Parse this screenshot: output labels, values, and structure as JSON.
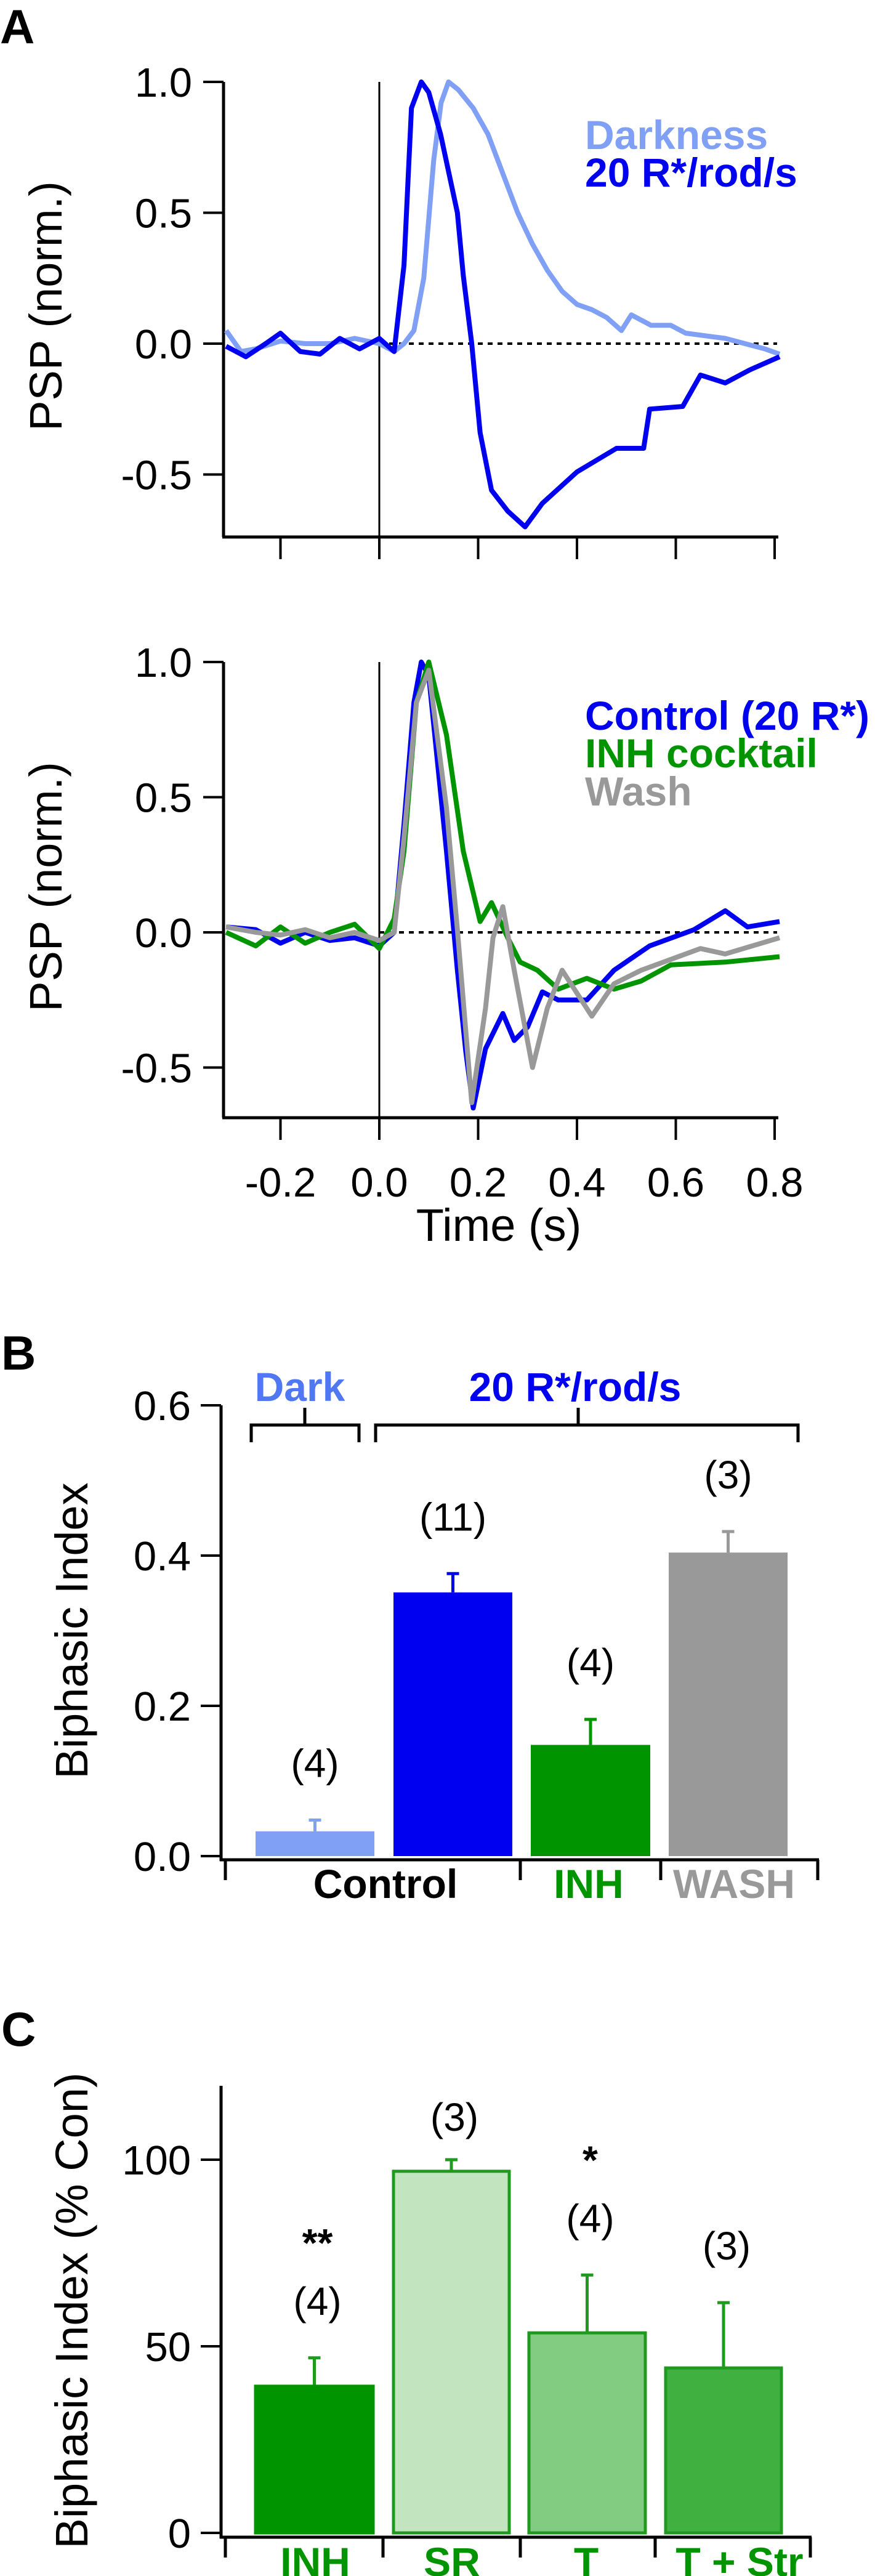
{
  "panel_labels": {
    "a": "A",
    "b": "B",
    "c": "C"
  },
  "colors": {
    "darkness": "#80a0f6",
    "control": "#0000f0",
    "inh": "#009400",
    "wash": "#999999",
    "dark_label": "#4f78f2",
    "sr": "#c2e5c0",
    "t": "#82cc82",
    "t_str": "#40b040",
    "c_outline": "#1f9a1f"
  },
  "chart_data": [
    {
      "type": "line",
      "ylabel": "PSP (norm.)",
      "xlim": [
        -0.3,
        0.8
      ],
      "ylim": [
        -0.7,
        1.0
      ],
      "yticks": [
        "1.0",
        "0.5",
        "0.0",
        "-0.5"
      ],
      "zero_line": "dotted",
      "series": [
        {
          "name": "Darkness",
          "color": "#80a0f6",
          "x": [
            -0.31,
            -0.28,
            -0.25,
            -0.2,
            -0.15,
            -0.1,
            -0.05,
            0.0,
            0.03,
            0.05,
            0.07,
            0.09,
            0.11,
            0.125,
            0.14,
            0.16,
            0.19,
            0.22,
            0.25,
            0.28,
            0.31,
            0.34,
            0.37,
            0.4,
            0.43,
            0.46,
            0.49,
            0.51,
            0.55,
            0.59,
            0.62,
            0.66,
            0.7,
            0.74,
            0.78,
            0.81
          ],
          "y": [
            0.05,
            -0.03,
            -0.02,
            0.01,
            0.0,
            0.0,
            0.02,
            0.0,
            -0.03,
            0.0,
            0.05,
            0.25,
            0.7,
            0.92,
            1.0,
            0.97,
            0.9,
            0.8,
            0.65,
            0.5,
            0.38,
            0.28,
            0.2,
            0.15,
            0.13,
            0.1,
            0.05,
            0.11,
            0.07,
            0.07,
            0.04,
            0.03,
            0.02,
            0.0,
            -0.02,
            -0.04
          ]
        },
        {
          "name": "20 R*/rod/s",
          "color": "#0000f0",
          "x": [
            -0.31,
            -0.27,
            -0.23,
            -0.2,
            -0.16,
            -0.12,
            -0.08,
            -0.04,
            0.0,
            0.03,
            0.05,
            0.065,
            0.085,
            0.1,
            0.124,
            0.158,
            0.17,
            0.187,
            0.204,
            0.227,
            0.26,
            0.295,
            0.33,
            0.4,
            0.48,
            0.535,
            0.547,
            0.614,
            0.65,
            0.7,
            0.75,
            0.81
          ],
          "y": [
            -0.01,
            -0.05,
            0.0,
            0.04,
            -0.03,
            -0.04,
            0.02,
            -0.02,
            0.02,
            -0.03,
            0.3,
            0.9,
            1.0,
            0.96,
            0.8,
            0.5,
            0.26,
            0.0,
            -0.34,
            -0.56,
            -0.64,
            -0.7,
            -0.61,
            -0.49,
            -0.4,
            -0.4,
            -0.25,
            -0.24,
            -0.12,
            -0.15,
            -0.1,
            -0.05
          ]
        }
      ]
    },
    {
      "type": "line",
      "xlabel": "Time (s)",
      "ylabel": "PSP (norm.)",
      "xlim": [
        -0.3,
        0.8
      ],
      "ylim": [
        -0.65,
        1.0
      ],
      "xticks": [
        "-0.2",
        "0.0",
        "0.2",
        "0.4",
        "0.6",
        "0.8"
      ],
      "yticks": [
        "1.0",
        "0.5",
        "0.0",
        "-0.5"
      ],
      "zero_line": "dotted",
      "series": [
        {
          "name": "Control (20 R*)",
          "color": "#0000f0",
          "x": [
            -0.31,
            -0.25,
            -0.2,
            -0.15,
            -0.1,
            -0.05,
            0.0,
            0.03,
            0.05,
            0.07,
            0.085,
            0.1,
            0.136,
            0.158,
            0.175,
            0.19,
            0.215,
            0.25,
            0.273,
            0.3,
            0.33,
            0.362,
            0.42,
            0.475,
            0.547,
            0.637,
            0.7,
            0.745,
            0.81
          ],
          "y": [
            0.02,
            0.01,
            -0.04,
            0.0,
            -0.03,
            -0.02,
            -0.05,
            0.0,
            0.4,
            0.85,
            1.0,
            0.95,
            0.3,
            -0.14,
            -0.44,
            -0.65,
            -0.43,
            -0.3,
            -0.4,
            -0.35,
            -0.22,
            -0.25,
            -0.25,
            -0.14,
            -0.05,
            0.01,
            0.08,
            0.02,
            0.04
          ]
        },
        {
          "name": "INH cocktail",
          "color": "#009400",
          "x": [
            -0.31,
            -0.25,
            -0.2,
            -0.15,
            -0.1,
            -0.05,
            0.0,
            0.03,
            0.05,
            0.075,
            0.1,
            0.136,
            0.17,
            0.204,
            0.227,
            0.26,
            0.285,
            0.32,
            0.362,
            0.42,
            0.475,
            0.53,
            0.59,
            0.7,
            0.81
          ],
          "y": [
            0.0,
            -0.05,
            0.02,
            -0.04,
            0.0,
            0.03,
            -0.06,
            0.05,
            0.3,
            0.85,
            1.0,
            0.73,
            0.3,
            0.04,
            0.11,
            -0.02,
            -0.11,
            -0.14,
            -0.21,
            -0.17,
            -0.21,
            -0.18,
            -0.12,
            -0.11,
            -0.09
          ]
        },
        {
          "name": "Wash",
          "color": "#999999",
          "x": [
            -0.31,
            -0.25,
            -0.2,
            -0.15,
            -0.1,
            -0.05,
            0.0,
            0.03,
            0.05,
            0.075,
            0.1,
            0.136,
            0.158,
            0.187,
            0.215,
            0.23,
            0.25,
            0.273,
            0.31,
            0.34,
            0.37,
            0.43,
            0.475,
            0.53,
            0.65,
            0.7,
            0.81
          ],
          "y": [
            0.02,
            0.0,
            -0.01,
            0.01,
            -0.02,
            0.0,
            -0.03,
            0.0,
            0.35,
            0.85,
            0.97,
            0.46,
            0.01,
            -0.63,
            -0.28,
            -0.02,
            0.095,
            -0.14,
            -0.5,
            -0.28,
            -0.14,
            -0.31,
            -0.19,
            -0.14,
            -0.06,
            -0.08,
            -0.02
          ]
        }
      ]
    },
    {
      "type": "bar",
      "ylabel": "Biphasic Index",
      "ylim": [
        0,
        0.6
      ],
      "yticks": [
        "0.6",
        "0.4",
        "0.2",
        "0.0"
      ],
      "categories": [
        "Dark",
        "Control",
        "INH",
        "WASH"
      ],
      "values": [
        0.033,
        0.351,
        0.148,
        0.404
      ],
      "errors": [
        0.015,
        0.025,
        0.034,
        0.028
      ],
      "n_labels": [
        "(4)",
        "(11)",
        "(4)",
        "(3)"
      ],
      "bar_colors": [
        "#80a0f6",
        "#0000f0",
        "#009400",
        "#999999"
      ],
      "group_labels": {
        "dark": "Dark",
        "light": "20 R*/rod/s"
      },
      "axis_groups": [
        {
          "label": "Control",
          "color": "#000000"
        },
        {
          "label": "INH",
          "color": "#009400"
        },
        {
          "label": "WASH",
          "color": "#999999"
        }
      ]
    },
    {
      "type": "bar",
      "ylabel": "Biphasic Index (% Con)",
      "ylim": [
        0,
        120
      ],
      "yticks": [
        "100",
        "50",
        "0"
      ],
      "categories": [
        "INH",
        "SR",
        "T",
        "T + Str"
      ],
      "values": [
        39.3,
        96.9,
        53.6,
        44.2
      ],
      "errors": [
        7.6,
        3.1,
        15.5,
        17.5
      ],
      "n_labels": [
        "(4)",
        "(3)",
        "(4)",
        "(3)"
      ],
      "significance": [
        "**",
        "",
        "*",
        ""
      ],
      "bar_colors": [
        "#009400",
        "#c2e5c0",
        "#82cc82",
        "#40b040"
      ]
    }
  ]
}
